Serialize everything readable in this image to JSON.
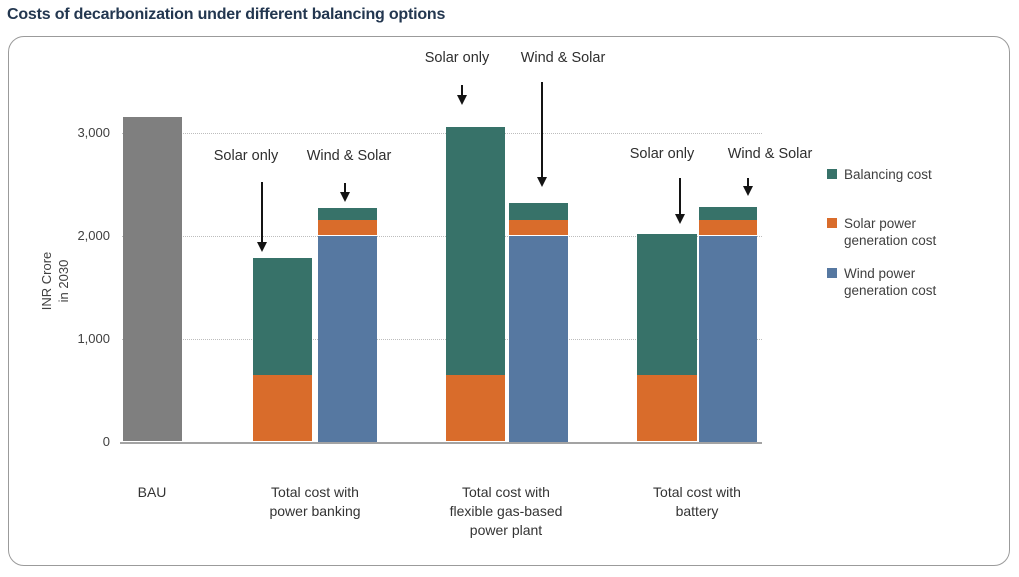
{
  "page_title": "Costs of decarbonization under different balancing options",
  "colors": {
    "title_text": "#233750",
    "axis_text": "#3f3f3f",
    "bau_gray": "#7f7f7f",
    "balancing_teal": "#377269",
    "solar_orange": "#d96c2b",
    "wind_blue": "#5678a1"
  },
  "chart_data": {
    "type": "bar",
    "stacked": true,
    "title": "Costs of decarbonization under different balancing options",
    "ylabel": "INR Crore in 2030",
    "ylabel_lines": [
      "INR Crore",
      "in 2030"
    ],
    "ylim": [
      0,
      3200
    ],
    "grid": "horizontal dotted lines at y ticks",
    "legend_position": "right",
    "y_ticks": [
      {
        "value": 0,
        "label": "0"
      },
      {
        "value": 1000,
        "label": "1,000"
      },
      {
        "value": 2000,
        "label": "2,000"
      },
      {
        "value": 3000,
        "label": "3,000"
      }
    ],
    "series": [
      {
        "key": "bau",
        "name": "BAU total cost",
        "color": "#7f7f7f"
      },
      {
        "key": "balancing",
        "name": "Balancing cost",
        "color": "#377269"
      },
      {
        "key": "solar",
        "name": "Solar power generation cost",
        "color": "#d96c2b"
      },
      {
        "key": "wind",
        "name": "Wind power generation cost",
        "color": "#5678a1"
      }
    ],
    "groups": [
      {
        "label_lines": [
          "BAU"
        ],
        "bars": [
          {
            "name": "BAU",
            "annotation": null,
            "total": 3150,
            "segments": [
              {
                "series": "bau",
                "value": 3150
              }
            ]
          }
        ]
      },
      {
        "label_lines": [
          "Total cost with",
          "power banking"
        ],
        "bars": [
          {
            "name": "Solar only",
            "annotation": "Solar only",
            "total": 1780,
            "segments": [
              {
                "series": "solar",
                "value": 650
              },
              {
                "series": "balancing",
                "value": 1130
              }
            ]
          },
          {
            "name": "Wind & Solar",
            "annotation": "Wind & Solar",
            "total": 2270,
            "segments": [
              {
                "series": "wind",
                "value": 2000
              },
              {
                "series": "solar",
                "value": 150
              },
              {
                "series": "balancing",
                "value": 120
              }
            ]
          }
        ]
      },
      {
        "label_lines": [
          "Total cost with",
          "flexible gas-based",
          "power plant"
        ],
        "bars": [
          {
            "name": "Solar only",
            "annotation": "Solar only",
            "total": 3050,
            "segments": [
              {
                "series": "solar",
                "value": 650
              },
              {
                "series": "balancing",
                "value": 2400
              }
            ]
          },
          {
            "name": "Wind & Solar",
            "annotation": "Wind & Solar",
            "total": 2320,
            "segments": [
              {
                "series": "wind",
                "value": 2000
              },
              {
                "series": "solar",
                "value": 150
              },
              {
                "series": "balancing",
                "value": 170
              }
            ]
          }
        ]
      },
      {
        "label_lines": [
          "Total cost with",
          "battery"
        ],
        "bars": [
          {
            "name": "Solar only",
            "annotation": "Solar only",
            "total": 2010,
            "segments": [
              {
                "series": "solar",
                "value": 650
              },
              {
                "series": "balancing",
                "value": 1360
              }
            ]
          },
          {
            "name": "Wind & Solar",
            "annotation": "Wind & Solar",
            "total": 2280,
            "segments": [
              {
                "series": "wind",
                "value": 2000
              },
              {
                "series": "solar",
                "value": 150
              },
              {
                "series": "balancing",
                "value": 130
              }
            ]
          }
        ]
      }
    ],
    "legend": [
      {
        "lines": [
          "Balancing cost"
        ],
        "series": "balancing",
        "color": "#377269"
      },
      {
        "lines": [
          "Solar power",
          "generation cost"
        ],
        "series": "solar",
        "color": "#d96c2b"
      },
      {
        "lines": [
          "Wind power",
          "generation cost"
        ],
        "series": "wind",
        "color": "#5678a1"
      }
    ]
  }
}
